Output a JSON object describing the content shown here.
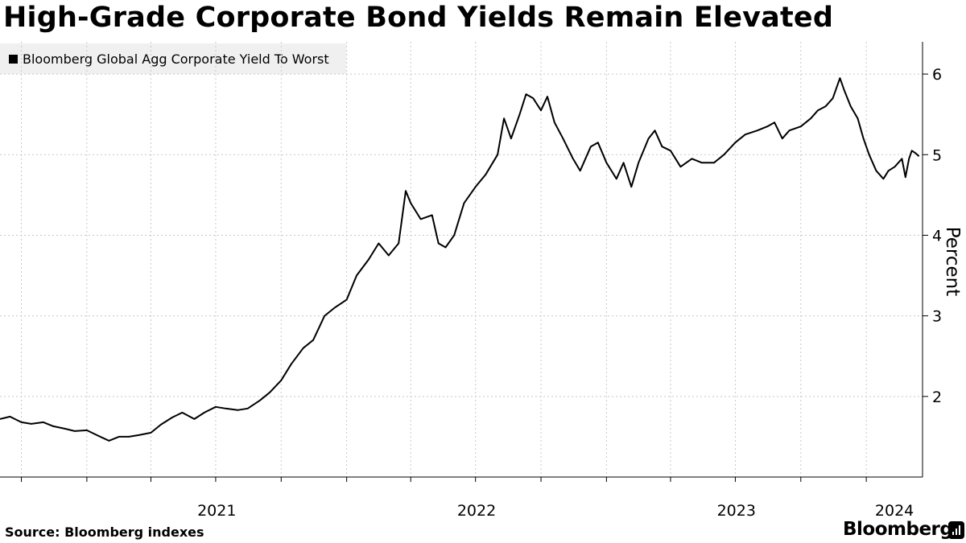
{
  "title": "High-Grade Corporate Bond Yields Remain Elevated",
  "source": "Source: Bloomberg indexes",
  "brand": "Bloomberg",
  "brand_icon": "bloomberg-bars-icon",
  "chart_data": {
    "type": "line",
    "title": "High-Grade Corporate Bond Yields Remain Elevated",
    "ylabel": "Percent",
    "xlabel": "",
    "ylim": [
      1.0,
      6.4
    ],
    "xlim": [
      "2020-09-01",
      "2024-03-20"
    ],
    "yticks": [
      2,
      3,
      4,
      5,
      6
    ],
    "xticks": [
      {
        "label": "2021",
        "date": "2021-01-01"
      },
      {
        "label": "2022",
        "date": "2022-01-01"
      },
      {
        "label": "2023",
        "date": "2023-01-01"
      },
      {
        "label": "2024",
        "date": "2024-01-01"
      }
    ],
    "grid": true,
    "legend_position": "top-left",
    "series": [
      {
        "name": "Bloomberg Global Agg Corporate Yield To Worst",
        "color": "#000000",
        "points": [
          [
            "2020-09-01",
            1.72
          ],
          [
            "2020-09-15",
            1.75
          ],
          [
            "2020-10-01",
            1.68
          ],
          [
            "2020-10-15",
            1.66
          ],
          [
            "2020-11-01",
            1.68
          ],
          [
            "2020-11-15",
            1.63
          ],
          [
            "2020-12-01",
            1.6
          ],
          [
            "2020-12-15",
            1.57
          ],
          [
            "2021-01-01",
            1.58
          ],
          [
            "2021-01-15",
            1.52
          ],
          [
            "2021-02-01",
            1.45
          ],
          [
            "2021-02-15",
            1.5
          ],
          [
            "2021-03-01",
            1.5
          ],
          [
            "2021-03-15",
            1.52
          ],
          [
            "2021-04-01",
            1.55
          ],
          [
            "2021-04-15",
            1.65
          ],
          [
            "2021-05-01",
            1.74
          ],
          [
            "2021-05-15",
            1.8
          ],
          [
            "2021-06-01",
            1.72
          ],
          [
            "2021-06-15",
            1.8
          ],
          [
            "2021-07-01",
            1.87
          ],
          [
            "2021-07-15",
            1.85
          ],
          [
            "2021-08-01",
            1.83
          ],
          [
            "2021-08-15",
            1.85
          ],
          [
            "2021-09-01",
            1.95
          ],
          [
            "2021-09-15",
            2.05
          ],
          [
            "2021-10-01",
            2.2
          ],
          [
            "2021-10-15",
            2.4
          ],
          [
            "2021-11-01",
            2.6
          ],
          [
            "2021-11-15",
            2.7
          ],
          [
            "2021-12-01",
            3.0
          ],
          [
            "2021-12-15",
            3.1
          ],
          [
            "2022-01-01",
            3.2
          ],
          [
            "2022-01-15",
            3.5
          ],
          [
            "2022-02-01",
            3.7
          ],
          [
            "2022-02-15",
            3.9
          ],
          [
            "2022-03-01",
            3.75
          ],
          [
            "2022-03-15",
            3.9
          ],
          [
            "2022-03-25",
            4.55
          ],
          [
            "2022-04-01",
            4.4
          ],
          [
            "2022-04-15",
            4.2
          ],
          [
            "2022-05-01",
            4.25
          ],
          [
            "2022-05-10",
            3.9
          ],
          [
            "2022-05-20",
            3.85
          ],
          [
            "2022-06-01",
            4.0
          ],
          [
            "2022-06-15",
            4.4
          ],
          [
            "2022-07-01",
            4.6
          ],
          [
            "2022-07-15",
            4.75
          ],
          [
            "2022-08-01",
            5.0
          ],
          [
            "2022-08-10",
            5.45
          ],
          [
            "2022-08-20",
            5.2
          ],
          [
            "2022-09-01",
            5.5
          ],
          [
            "2022-09-10",
            5.75
          ],
          [
            "2022-09-20",
            5.7
          ],
          [
            "2022-10-01",
            5.55
          ],
          [
            "2022-10-10",
            5.72
          ],
          [
            "2022-10-20",
            5.4
          ],
          [
            "2022-11-01",
            5.2
          ],
          [
            "2022-11-15",
            4.95
          ],
          [
            "2022-11-25",
            4.8
          ],
          [
            "2022-12-10",
            5.1
          ],
          [
            "2022-12-20",
            5.15
          ],
          [
            "2023-01-01",
            4.9
          ],
          [
            "2023-01-15",
            4.7
          ],
          [
            "2023-01-25",
            4.9
          ],
          [
            "2023-02-05",
            4.6
          ],
          [
            "2023-02-15",
            4.9
          ],
          [
            "2023-03-01",
            5.2
          ],
          [
            "2023-03-10",
            5.3
          ],
          [
            "2023-03-20",
            5.1
          ],
          [
            "2023-04-01",
            5.05
          ],
          [
            "2023-04-15",
            4.85
          ],
          [
            "2023-05-01",
            4.95
          ],
          [
            "2023-05-15",
            4.9
          ],
          [
            "2023-06-01",
            4.9
          ],
          [
            "2023-06-15",
            5.0
          ],
          [
            "2023-07-01",
            5.15
          ],
          [
            "2023-07-15",
            5.25
          ],
          [
            "2023-08-01",
            5.3
          ],
          [
            "2023-08-15",
            5.35
          ],
          [
            "2023-08-25",
            5.4
          ],
          [
            "2023-09-05",
            5.2
          ],
          [
            "2023-09-15",
            5.3
          ],
          [
            "2023-10-01",
            5.35
          ],
          [
            "2023-10-15",
            5.45
          ],
          [
            "2023-10-25",
            5.55
          ],
          [
            "2023-11-05",
            5.6
          ],
          [
            "2023-11-15",
            5.7
          ],
          [
            "2023-11-25",
            5.95
          ],
          [
            "2023-12-01",
            5.8
          ],
          [
            "2023-12-10",
            5.6
          ],
          [
            "2023-12-20",
            5.45
          ],
          [
            "2023-12-28",
            5.2
          ],
          [
            "2024-01-05",
            5.0
          ],
          [
            "2024-01-15",
            4.8
          ],
          [
            "2024-01-25",
            4.7
          ],
          [
            "2024-02-01",
            4.8
          ],
          [
            "2024-02-10",
            4.85
          ],
          [
            "2024-02-20",
            4.95
          ],
          [
            "2024-02-25",
            4.72
          ],
          [
            "2024-03-01",
            4.95
          ],
          [
            "2024-03-05",
            5.05
          ],
          [
            "2024-03-10",
            5.02
          ],
          [
            "2024-03-15",
            4.98
          ]
        ]
      }
    ]
  }
}
